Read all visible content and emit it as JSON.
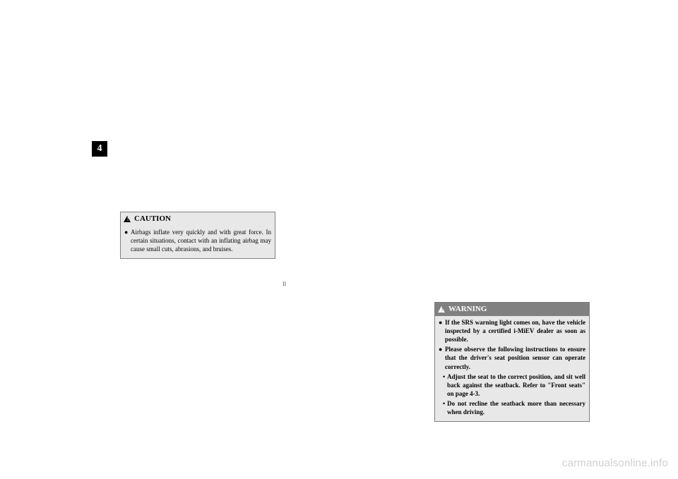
{
  "sideTab": {
    "number": "4"
  },
  "caution": {
    "header": "CAUTION",
    "bullets": [
      "Airbags inflate very quickly and with great force. In certain situations, contact with an inflating airbag may cause small cuts, abrasions, and bruises."
    ]
  },
  "warning": {
    "header": "WARNING",
    "bullets": [
      "If the SRS warning light comes on, have the vehicle inspected by a certified i-MiEV dealer as soon as possible.",
      "Please observe the following instructions to ensure that the driver's seat position sensor can operate correctly."
    ],
    "subBullets": [
      "Adjust the seat to the correct position, and sit well back against the seatback. Refer to \"Front seats\" on page 4-3.",
      "Do not recline the seatback more than necessary when driving."
    ]
  },
  "pageMarker": "II",
  "watermark": "carmanualsonline.info",
  "colors": {
    "boxBg": "#e8e8e8",
    "boxBorder": "#808080",
    "warnHeaderBg": "#808080",
    "warnHeaderText": "#ffffff",
    "watermark": "#d0d0d0"
  }
}
